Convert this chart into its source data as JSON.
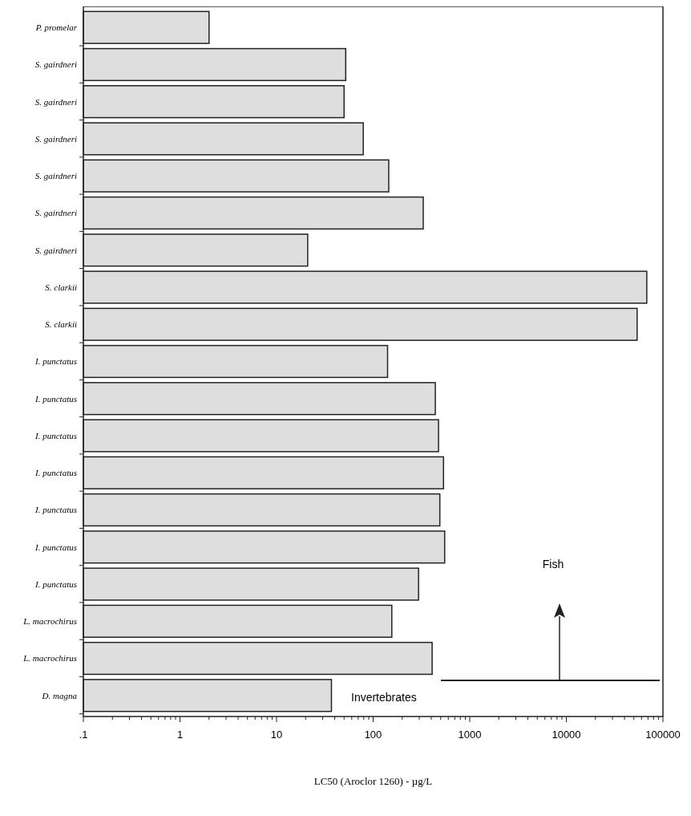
{
  "chart_data": {
    "type": "bar",
    "orientation": "horizontal",
    "log": "x",
    "xlabel": "LC50 (Aroclor 1260) - µg/L",
    "categories": [
      "P. promelar",
      "S. gairdneri",
      "S. gairdneri",
      "S. gairdneri",
      "S. gairdneri",
      "S. gairdneri",
      "S. gairdneri",
      "S. clarkii",
      "S. clarkii",
      "I. punctatus",
      "I. punctatus",
      "I. punctatus",
      "I. punctatus",
      "I. punctatus",
      "I. punctatus",
      "I. punctatus",
      "L. macrochirus",
      "L. macrochirus",
      "D. magna"
    ],
    "values": [
      2,
      52,
      50,
      79,
      145,
      330,
      21,
      68000,
      54000,
      141,
      440,
      475,
      535,
      490,
      550,
      295,
      156,
      408,
      37
    ],
    "color": "#dedede",
    "xlim": [
      0.1,
      100000
    ],
    "xticks": [
      {
        "value": 0.1,
        "label": ".1"
      },
      1,
      10,
      100,
      1000,
      10000,
      100000
    ],
    "grid": false,
    "annotations": [
      "Fish",
      "Invertebrates"
    ]
  }
}
